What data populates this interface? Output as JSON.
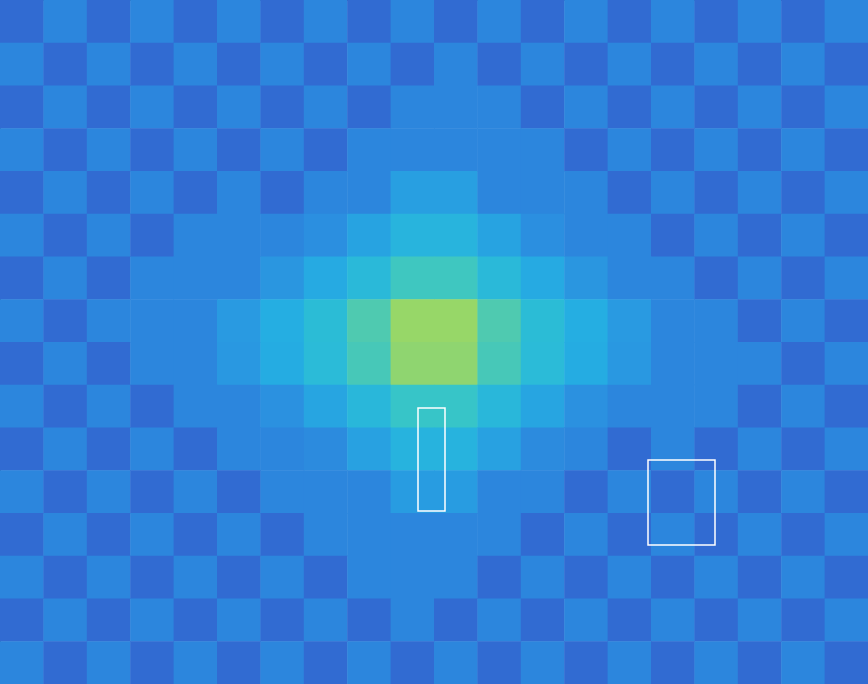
{
  "chart_data": {
    "type": "heatmap",
    "x_edges": [
      0,
      43.4,
      86.8,
      130.2,
      173.6,
      217,
      260.4,
      303.8,
      347.2,
      390.6,
      434,
      477.4,
      520.8,
      564.2,
      607.6,
      651,
      694.4,
      737.8,
      781.2,
      824.6,
      868
    ],
    "y_edges": [
      0,
      42.75,
      85.5,
      128.25,
      171,
      213.75,
      256.5,
      299.25,
      342,
      384.75,
      427.5,
      470.25,
      513,
      555.75,
      598.5,
      641.25,
      684
    ],
    "cells": [
      [
        0.36,
        0.42,
        0.36,
        0.42,
        0.36,
        0.42,
        0.36,
        0.42,
        0.36,
        0.42,
        0.36,
        0.42,
        0.36,
        0.42,
        0.36,
        0.42,
        0.36,
        0.42,
        0.36,
        0.42
      ],
      [
        0.42,
        0.36,
        0.42,
        0.36,
        0.42,
        0.36,
        0.42,
        0.36,
        0.42,
        0.36,
        0.42,
        0.36,
        0.42,
        0.36,
        0.42,
        0.36,
        0.42,
        0.36,
        0.42,
        0.36
      ],
      [
        0.36,
        0.42,
        0.36,
        0.42,
        0.36,
        0.42,
        0.36,
        0.42,
        0.36,
        0.42,
        0.42,
        0.42,
        0.36,
        0.42,
        0.36,
        0.42,
        0.36,
        0.42,
        0.36,
        0.42
      ],
      [
        0.42,
        0.36,
        0.42,
        0.36,
        0.42,
        0.36,
        0.42,
        0.36,
        0.42,
        0.42,
        0.42,
        0.42,
        0.42,
        0.36,
        0.42,
        0.36,
        0.42,
        0.36,
        0.42,
        0.36
      ],
      [
        0.36,
        0.42,
        0.36,
        0.42,
        0.36,
        0.42,
        0.36,
        0.42,
        0.42,
        0.51,
        0.51,
        0.42,
        0.42,
        0.42,
        0.36,
        0.42,
        0.36,
        0.42,
        0.36,
        0.42
      ],
      [
        0.42,
        0.36,
        0.42,
        0.36,
        0.42,
        0.42,
        0.42,
        0.44,
        0.53,
        0.62,
        0.62,
        0.53,
        0.44,
        0.42,
        0.42,
        0.36,
        0.42,
        0.36,
        0.42,
        0.36
      ],
      [
        0.36,
        0.42,
        0.36,
        0.42,
        0.42,
        0.42,
        0.47,
        0.56,
        0.65,
        0.74,
        0.74,
        0.65,
        0.56,
        0.47,
        0.42,
        0.42,
        0.36,
        0.42,
        0.36,
        0.42
      ],
      [
        0.42,
        0.36,
        0.42,
        0.42,
        0.42,
        0.49,
        0.58,
        0.67,
        0.76,
        0.85,
        0.85,
        0.76,
        0.67,
        0.58,
        0.49,
        0.42,
        0.42,
        0.36,
        0.42,
        0.36
      ],
      [
        0.36,
        0.42,
        0.36,
        0.42,
        0.42,
        0.48,
        0.57,
        0.66,
        0.75,
        0.84,
        0.84,
        0.75,
        0.66,
        0.57,
        0.48,
        0.42,
        0.42,
        0.42,
        0.36,
        0.42
      ],
      [
        0.42,
        0.36,
        0.42,
        0.36,
        0.42,
        0.42,
        0.45,
        0.54,
        0.64,
        0.73,
        0.73,
        0.64,
        0.54,
        0.45,
        0.42,
        0.42,
        0.42,
        0.36,
        0.42,
        0.36
      ],
      [
        0.36,
        0.42,
        0.36,
        0.42,
        0.36,
        0.42,
        0.42,
        0.43,
        0.52,
        0.61,
        0.61,
        0.52,
        0.43,
        0.42,
        0.36,
        0.42,
        0.36,
        0.42,
        0.36,
        0.42
      ],
      [
        0.42,
        0.36,
        0.42,
        0.36,
        0.42,
        0.36,
        0.42,
        0.42,
        0.42,
        0.5,
        0.5,
        0.42,
        0.42,
        0.36,
        0.42,
        0.36,
        0.42,
        0.36,
        0.42,
        0.36
      ],
      [
        0.36,
        0.42,
        0.36,
        0.42,
        0.36,
        0.42,
        0.36,
        0.42,
        0.42,
        0.42,
        0.42,
        0.42,
        0.36,
        0.42,
        0.36,
        0.42,
        0.36,
        0.42,
        0.36,
        0.42
      ],
      [
        0.42,
        0.36,
        0.42,
        0.36,
        0.42,
        0.36,
        0.42,
        0.36,
        0.42,
        0.42,
        0.42,
        0.36,
        0.42,
        0.36,
        0.42,
        0.36,
        0.42,
        0.36,
        0.42,
        0.36
      ],
      [
        0.36,
        0.42,
        0.36,
        0.42,
        0.36,
        0.42,
        0.36,
        0.42,
        0.36,
        0.42,
        0.36,
        0.42,
        0.36,
        0.42,
        0.36,
        0.42,
        0.36,
        0.42,
        0.36,
        0.42
      ],
      [
        0.42,
        0.36,
        0.42,
        0.36,
        0.42,
        0.36,
        0.42,
        0.36,
        0.42,
        0.36,
        0.42,
        0.36,
        0.42,
        0.36,
        0.42,
        0.36,
        0.42,
        0.36,
        0.42,
        0.36
      ]
    ],
    "color_range": [
      0.3,
      1.0
    ],
    "regions": [
      {
        "x": [
          418,
          445
        ],
        "y": [
          408,
          511
        ]
      },
      {
        "x": [
          648,
          715
        ],
        "y": [
          460,
          545
        ]
      }
    ],
    "xlim": [
      0,
      868
    ],
    "ylim": [
      0,
      684
    ],
    "xticks": [
      133,
      269,
      405,
      541,
      677,
      813
    ],
    "yticks": [
      85,
      170,
      255,
      340,
      425,
      510,
      596
    ],
    "tick_labels": false,
    "grid": false
  }
}
